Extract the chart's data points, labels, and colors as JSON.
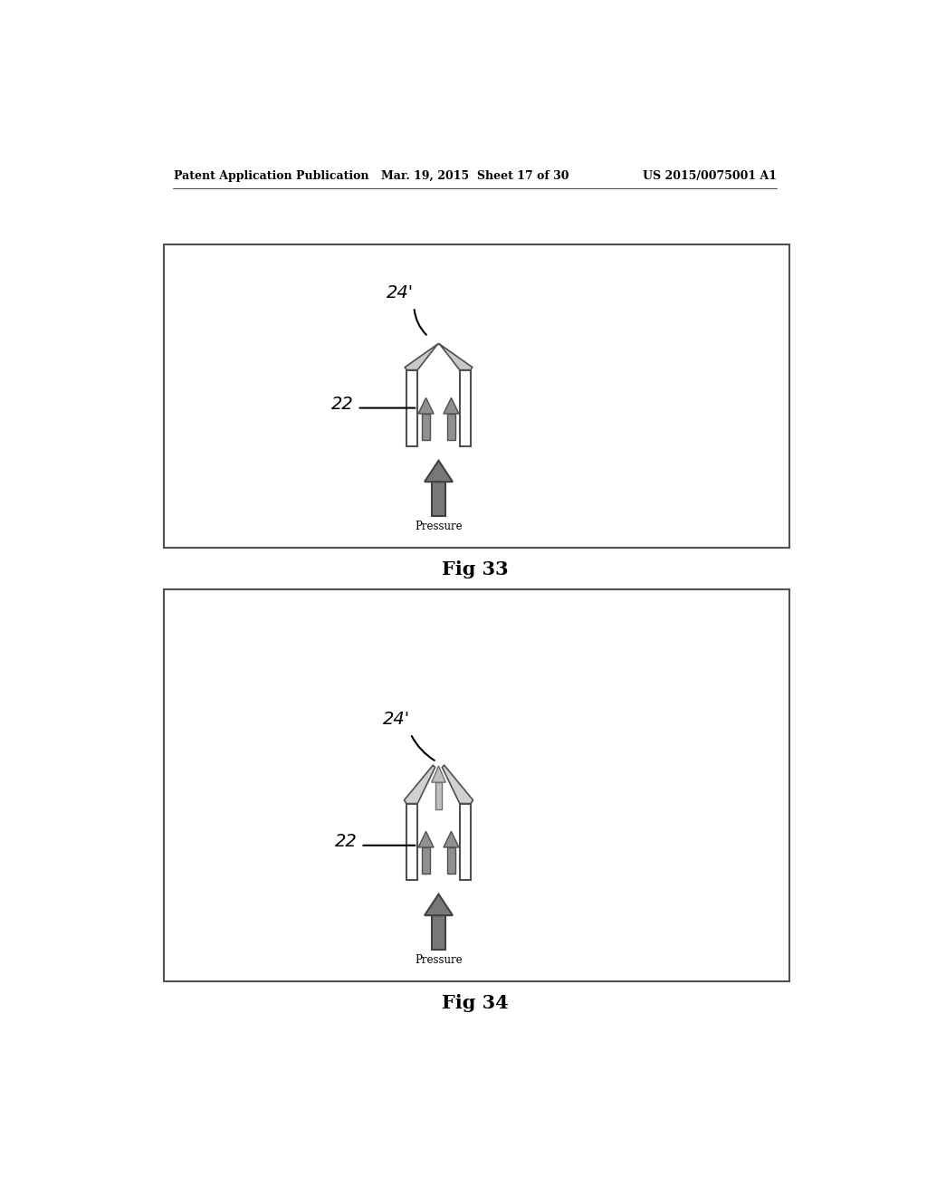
{
  "header_left": "Patent Application Publication",
  "header_mid": "Mar. 19, 2015  Sheet 17 of 30",
  "header_right": "US 2015/0075001 A1",
  "fig33_caption": "Fig 33",
  "fig34_caption": "Fig 34",
  "label_22": "22",
  "label_24": "24'",
  "pressure_label": "Pressure",
  "bg_color": "#ffffff"
}
